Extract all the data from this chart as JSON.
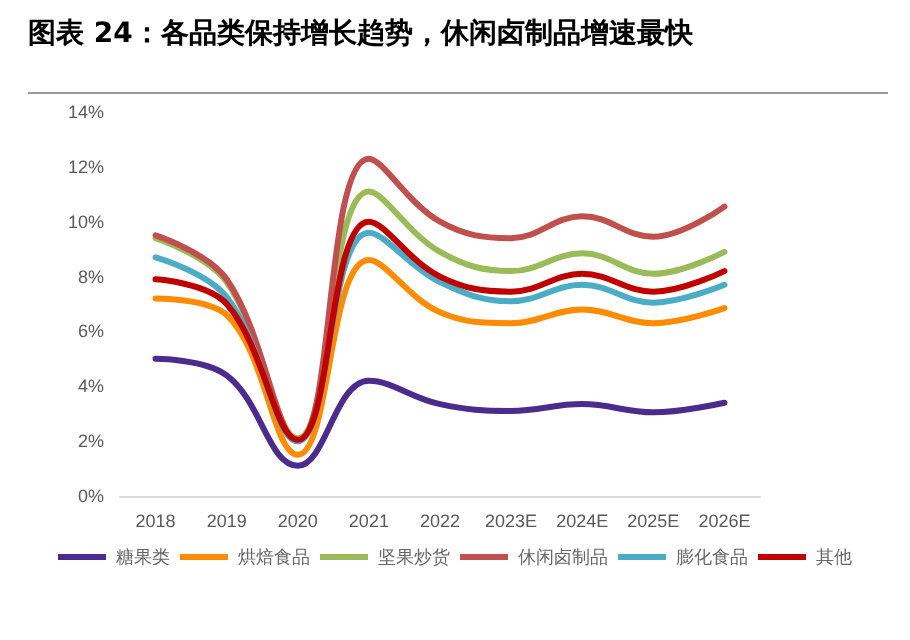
{
  "chart_data": {
    "type": "line",
    "title": "图表 24：各品类保持增长趋势，休闲卤制品增速最快",
    "categories": [
      "2018",
      "2019",
      "2020",
      "2021",
      "2022",
      "2023E",
      "2024E",
      "2025E",
      "2026E"
    ],
    "series": [
      {
        "name": "糖果类",
        "color": "#4b2c8c",
        "values": [
          5.0,
          4.4,
          1.1,
          4.2,
          3.35,
          3.1,
          3.35,
          3.05,
          3.4
        ]
      },
      {
        "name": "烘焙食品",
        "color": "#ff8c00",
        "values": [
          7.2,
          6.6,
          1.5,
          8.6,
          6.7,
          6.3,
          6.8,
          6.3,
          6.85
        ]
      },
      {
        "name": "坚果炒货",
        "color": "#9bbb59",
        "values": [
          9.4,
          7.8,
          2.1,
          11.1,
          8.9,
          8.2,
          8.85,
          8.1,
          8.9
        ]
      },
      {
        "name": "休闲卤制品",
        "color": "#c0504d",
        "values": [
          9.5,
          7.9,
          2.0,
          12.3,
          10.0,
          9.4,
          10.2,
          9.45,
          10.55
        ]
      },
      {
        "name": "膨化食品",
        "color": "#4bacc6",
        "values": [
          8.7,
          7.25,
          2.0,
          9.6,
          7.8,
          7.1,
          7.7,
          7.05,
          7.7
        ]
      },
      {
        "name": "其他",
        "color": "#c00000",
        "values": [
          7.9,
          7.0,
          2.05,
          10.0,
          8.0,
          7.45,
          8.1,
          7.45,
          8.2
        ]
      }
    ],
    "ylim": [
      0,
      14
    ],
    "yticks": [
      {
        "value": 0,
        "label": "0%"
      },
      {
        "value": 2,
        "label": "2%"
      },
      {
        "value": 4,
        "label": "4%"
      },
      {
        "value": 6,
        "label": "6%"
      },
      {
        "value": 8,
        "label": "8%"
      },
      {
        "value": 10,
        "label": "10%"
      },
      {
        "value": 12,
        "label": "12%"
      },
      {
        "value": 14,
        "label": "14%"
      }
    ],
    "grid": false,
    "legend": "bottom",
    "marker": "none",
    "line_style": "solid"
  }
}
